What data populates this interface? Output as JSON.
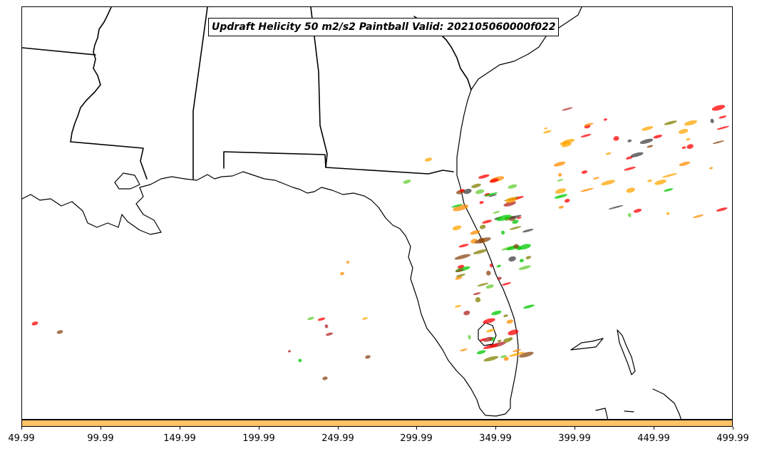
{
  "title": "Updraft Helicity 50 m2/s2 Paintball Valid: 202105060000f022",
  "colorbar": {
    "color": "#ffc266",
    "tick_labels": [
      "49.99",
      "99.99",
      "149.99",
      "199.99",
      "249.99",
      "299.99",
      "349.99",
      "399.99",
      "449.99",
      "499.99"
    ]
  },
  "map": {
    "region": "Southeastern United States and Florida",
    "features": [
      "coastlines",
      "state-borders"
    ],
    "paintball_colors": [
      "#ff0000",
      "#ff8c00",
      "#ffa500",
      "#00c800",
      "#808000",
      "#8b4513",
      "#404040",
      "#b22222",
      "#66cc33"
    ]
  }
}
